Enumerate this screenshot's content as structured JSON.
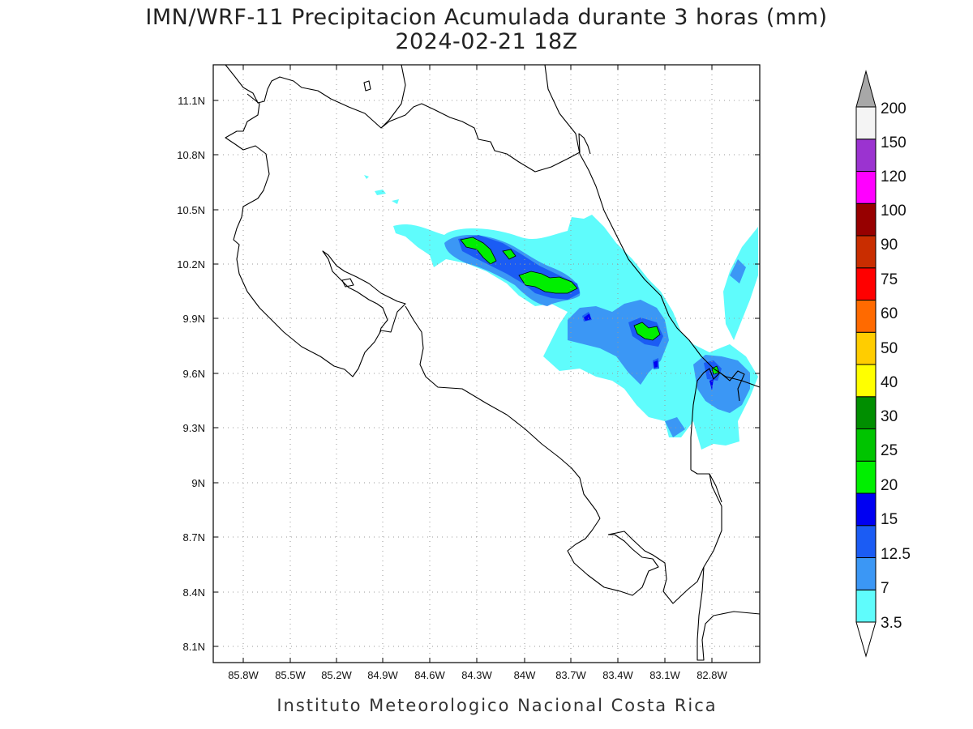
{
  "map": {
    "title_line1": "IMN/WRF-11 Precipitacion Acumulada durante 3 horas (mm)",
    "title_line2": "2024-02-21 18Z",
    "footer": "Instituto Meteorologico Nacional Costa Rica",
    "lon_labels": [
      "85.8W",
      "85.5W",
      "85.2W",
      "84.9W",
      "84.6W",
      "84.3W",
      "84W",
      "83.7W",
      "83.4W",
      "83.1W",
      "82.8W"
    ],
    "lat_labels": [
      "11.1N",
      "10.8N",
      "10.5N",
      "10.2N",
      "9.9N",
      "9.6N",
      "9.3N",
      "9N",
      "8.7N",
      "8.4N",
      "8.1N"
    ],
    "lon_range": [
      -86.0,
      -82.55
    ],
    "lat_range": [
      8.0,
      11.3
    ],
    "gridlines": "dotted"
  },
  "colorbar": {
    "units": "mm",
    "labels": [
      "3.5",
      "7",
      "12.5",
      "15",
      "20",
      "25",
      "30",
      "40",
      "50",
      "60",
      "75",
      "90",
      "100",
      "120",
      "150",
      "200"
    ],
    "colors": [
      "#5ffcfc",
      "#3b97f5",
      "#1b5cf4",
      "#0000f2",
      "#00ef00",
      "#00c400",
      "#008e00",
      "#ffff00",
      "#ffcd00",
      "#ff6a00",
      "#ff0000",
      "#c92d00",
      "#970000",
      "#ff00ff",
      "#9b33d0",
      "#f4f4f4"
    ],
    "over_color": "#a8a8a8",
    "under_color": "#ffffff"
  }
}
